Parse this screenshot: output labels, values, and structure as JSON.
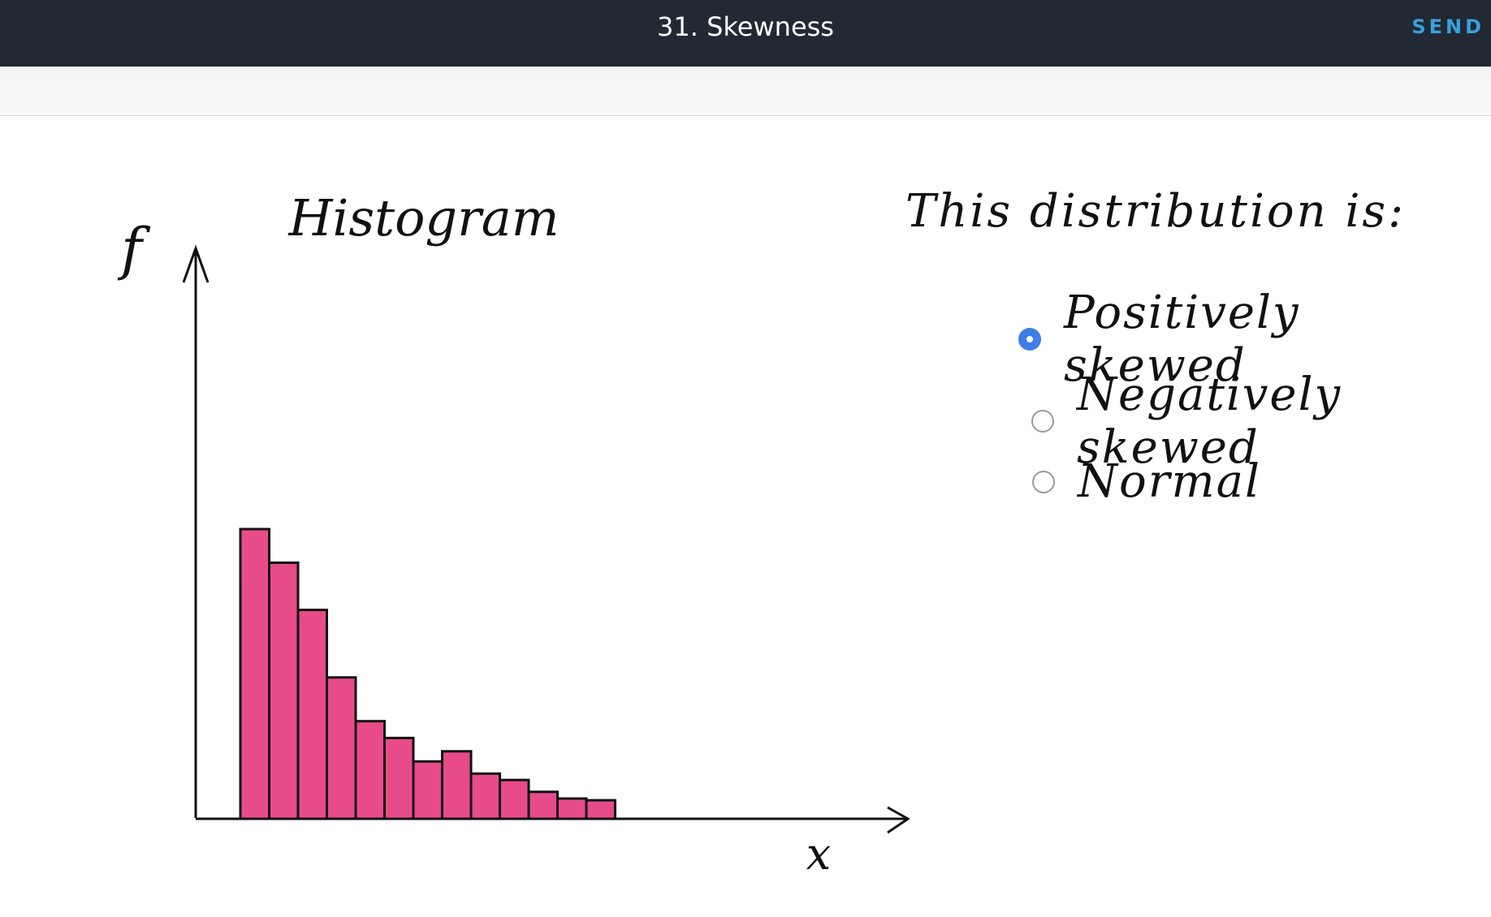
{
  "header": {
    "title": "31. Skewness",
    "send_label": "SEND"
  },
  "question": {
    "prompt": "This distribution is:",
    "options": [
      {
        "label": "Positively skewed",
        "selected": true
      },
      {
        "label": "Negatively skewed",
        "selected": false
      },
      {
        "label": "Normal",
        "selected": false
      }
    ]
  },
  "colors": {
    "accent": "#3aa0e0",
    "bar_fill": "#e84b8a",
    "header_bg": "#212932",
    "radio_selected": "#3f7ee6"
  },
  "chart_data": {
    "type": "bar",
    "title": "Histogram",
    "xlabel": "x",
    "ylabel": "f",
    "values": [
      100,
      88.4,
      72.1,
      48.8,
      33.7,
      27.9,
      19.8,
      23.3,
      15.6,
      13.4,
      9.3,
      7.0,
      6.4
    ],
    "ylim": [
      0,
      100
    ],
    "grid": false
  }
}
